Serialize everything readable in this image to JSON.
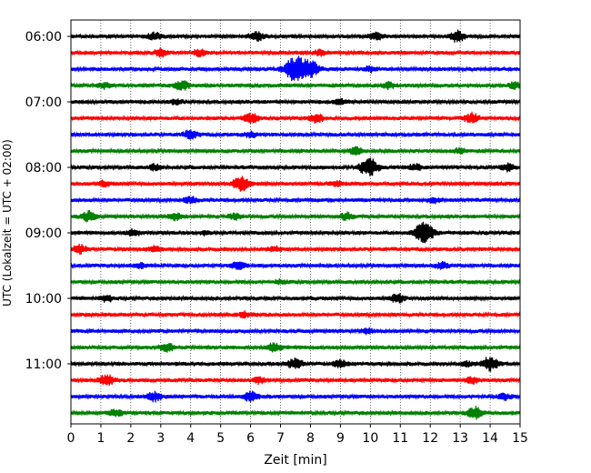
{
  "chart_data": {
    "type": "line",
    "title": "",
    "xlabel": "Zeit  [min]",
    "ylabel": "UTC (Lokalzeit = UTC + 02:00)",
    "xlim": [
      0,
      15
    ],
    "x_ticks": [
      0,
      1,
      2,
      3,
      4,
      5,
      6,
      7,
      8,
      9,
      10,
      11,
      12,
      13,
      14,
      15
    ],
    "y_tick_labels": [
      "06:00",
      "07:00",
      "08:00",
      "09:00",
      "10:00",
      "11:00"
    ],
    "row_interval_minutes": 15,
    "row_start": "06:00",
    "grid": "vertical-dotted",
    "colors": {
      "cycle": [
        "#000000",
        "#ff0000",
        "#0000ff",
        "#008000"
      ]
    },
    "series": [
      {
        "start": "06:00",
        "color": "#000000",
        "events": [
          [
            2.8,
            0.6
          ],
          [
            6.2,
            0.7
          ],
          [
            10.2,
            0.6
          ],
          [
            12.9,
            0.9
          ]
        ]
      },
      {
        "start": "06:15",
        "color": "#ff0000",
        "events": [
          [
            3.0,
            0.6
          ],
          [
            4.3,
            0.5
          ],
          [
            8.3,
            0.4
          ]
        ]
      },
      {
        "start": "06:30",
        "color": "#0000ff",
        "events": [
          [
            7.5,
            2.2
          ],
          [
            8.0,
            1.4
          ],
          [
            10.0,
            0.4
          ]
        ]
      },
      {
        "start": "06:45",
        "color": "#008000",
        "events": [
          [
            1.1,
            0.5
          ],
          [
            3.7,
            0.8
          ],
          [
            10.6,
            0.5
          ],
          [
            14.8,
            0.5
          ]
        ]
      },
      {
        "start": "07:00",
        "color": "#000000",
        "events": [
          [
            3.5,
            0.4
          ],
          [
            9.0,
            0.4
          ]
        ]
      },
      {
        "start": "07:15",
        "color": "#ff0000",
        "events": [
          [
            6.0,
            0.8
          ],
          [
            8.2,
            0.7
          ],
          [
            13.4,
            0.8
          ]
        ]
      },
      {
        "start": "07:30",
        "color": "#0000ff",
        "events": [
          [
            4.0,
            0.7
          ],
          [
            6.0,
            0.4
          ]
        ]
      },
      {
        "start": "07:45",
        "color": "#008000",
        "events": [
          [
            9.5,
            0.6
          ],
          [
            13.0,
            0.4
          ]
        ]
      },
      {
        "start": "08:00",
        "color": "#000000",
        "events": [
          [
            2.8,
            0.5
          ],
          [
            9.95,
            1.6
          ],
          [
            11.5,
            0.5
          ],
          [
            14.6,
            0.6
          ]
        ]
      },
      {
        "start": "08:15",
        "color": "#ff0000",
        "events": [
          [
            5.7,
            1.3
          ],
          [
            1.1,
            0.4
          ],
          [
            8.9,
            0.4
          ]
        ]
      },
      {
        "start": "08:30",
        "color": "#0000ff",
        "events": [
          [
            4.0,
            0.5
          ],
          [
            12.1,
            0.4
          ]
        ]
      },
      {
        "start": "08:45",
        "color": "#008000",
        "events": [
          [
            0.6,
            0.8
          ],
          [
            3.5,
            0.6
          ],
          [
            5.5,
            0.5
          ],
          [
            9.2,
            0.6
          ]
        ]
      },
      {
        "start": "09:00",
        "color": "#000000",
        "events": [
          [
            2.1,
            0.6
          ],
          [
            11.8,
            1.8
          ],
          [
            4.5,
            0.3
          ]
        ]
      },
      {
        "start": "09:15",
        "color": "#ff0000",
        "events": [
          [
            0.3,
            0.7
          ],
          [
            2.8,
            0.4
          ],
          [
            6.8,
            0.4
          ]
        ]
      },
      {
        "start": "09:30",
        "color": "#0000ff",
        "events": [
          [
            2.3,
            0.4
          ],
          [
            5.6,
            0.6
          ],
          [
            12.4,
            0.5
          ]
        ]
      },
      {
        "start": "09:45",
        "color": "#008000",
        "events": [
          [
            7.0,
            0.3
          ]
        ]
      },
      {
        "start": "10:00",
        "color": "#000000",
        "events": [
          [
            1.2,
            0.5
          ],
          [
            10.9,
            0.7
          ]
        ]
      },
      {
        "start": "10:15",
        "color": "#ff0000",
        "events": [
          [
            5.8,
            0.4
          ]
        ]
      },
      {
        "start": "10:30",
        "color": "#0000ff",
        "events": [
          [
            9.9,
            0.4
          ]
        ]
      },
      {
        "start": "10:45",
        "color": "#008000",
        "events": [
          [
            3.2,
            0.7
          ],
          [
            6.8,
            0.7
          ]
        ]
      },
      {
        "start": "11:00",
        "color": "#000000",
        "events": [
          [
            7.5,
            0.9
          ],
          [
            14.0,
            1.2
          ],
          [
            9.0,
            0.6
          ],
          [
            13.2,
            0.4
          ]
        ]
      },
      {
        "start": "11:15",
        "color": "#ff0000",
        "events": [
          [
            1.2,
            0.9
          ],
          [
            6.3,
            0.5
          ],
          [
            13.4,
            0.5
          ]
        ]
      },
      {
        "start": "11:30",
        "color": "#0000ff",
        "events": [
          [
            2.8,
            0.8
          ],
          [
            6.0,
            0.8
          ],
          [
            14.5,
            0.5
          ]
        ]
      },
      {
        "start": "11:45",
        "color": "#008000",
        "events": [
          [
            1.5,
            0.6
          ],
          [
            13.5,
            1.0
          ]
        ]
      }
    ]
  }
}
